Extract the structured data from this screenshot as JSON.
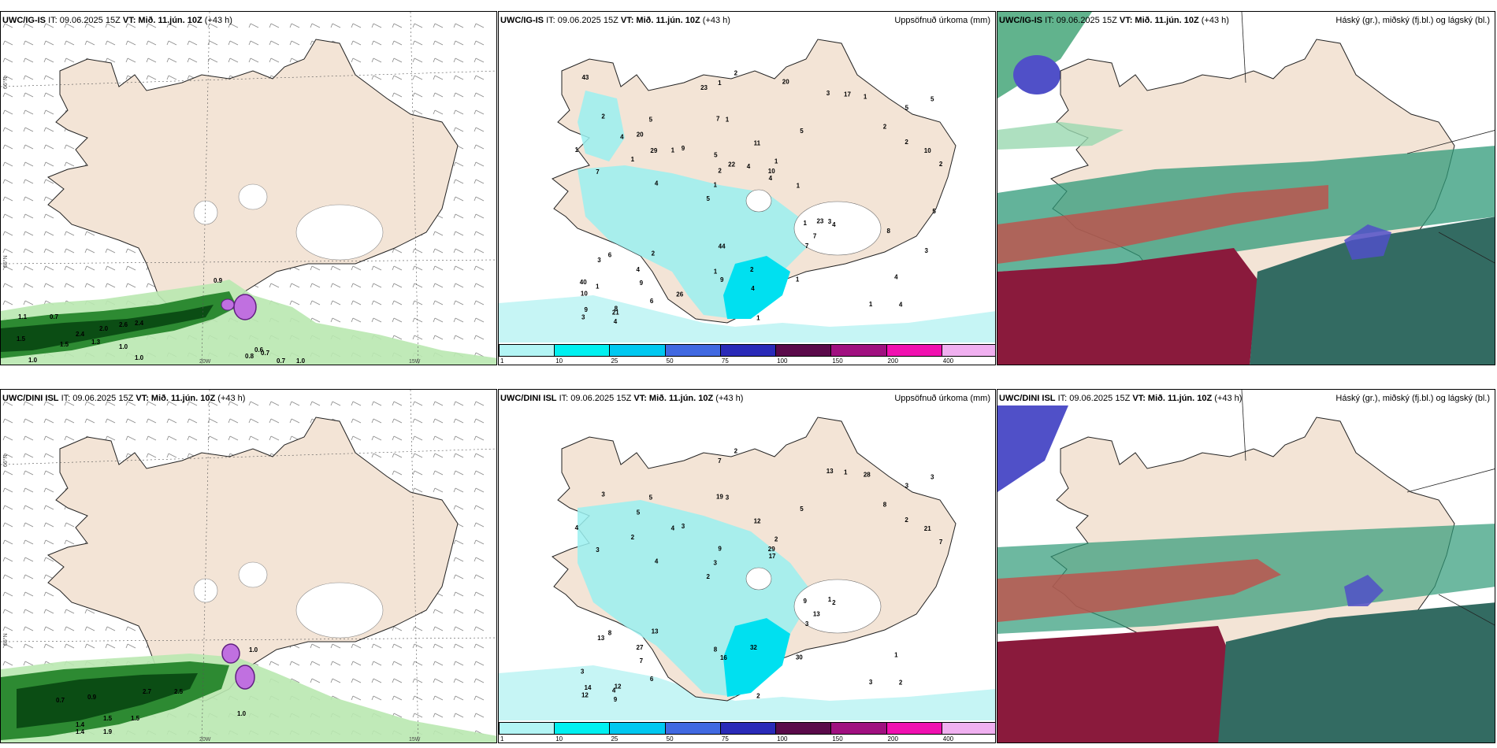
{
  "panels": [
    {
      "model": "UWC/IG-IS",
      "it": "IT: 09.06.2025 15Z",
      "vt": "VT: Mið. 11.jún. 10Z",
      "lead": "(+43 h)",
      "right": ""
    },
    {
      "model": "UWC/IG-IS",
      "it": "IT: 09.06.2025 15Z",
      "vt": "VT: Mið. 11.jún. 10Z",
      "lead": "(+43 h)",
      "right": "Uppsöfnuð úrkoma (mm)"
    },
    {
      "model": "UWC/IG-IS",
      "it": "IT: 09.06.2025 15Z",
      "vt": "VT: Mið. 11.jún. 10Z",
      "lead": "(+43 h)",
      "right": "Háský (gr.), miðský (fj.bl.) og lágský (bl.)"
    },
    {
      "model": "UWC/DINI ISL",
      "it": "IT: 09.06.2025 15Z",
      "vt": "VT: Mið. 11.jún. 10Z",
      "lead": "(+43 h)",
      "right": ""
    },
    {
      "model": "UWC/DINI ISL",
      "it": "IT: 09.06.2025 15Z",
      "vt": "VT: Mið. 11.jún. 10Z",
      "lead": "(+43 h)",
      "right": "Uppsöfnuð úrkoma (mm)"
    },
    {
      "model": "UWC/DINI ISL",
      "it": "IT: 09.06.2025 15Z",
      "vt": "VT: Mið. 11.jún. 10Z",
      "lead": "(+43 h)",
      "right": "Háský (gr.), miðský (fj.bl.) og lágský (bl.)"
    }
  ],
  "colorbar": {
    "ticks": [
      "1",
      "10",
      "25",
      "50",
      "75",
      "100",
      "150",
      "200",
      "400"
    ],
    "colors": [
      "#b3f5f5",
      "#00f0f0",
      "#00c8f0",
      "#4169e1",
      "#2a2ab8",
      "#5a0a4a",
      "#a01080",
      "#f010b0",
      "#f0b0f0"
    ]
  },
  "axis_labels": {
    "lat66": "66°N",
    "lat65": "65°N",
    "lat64": "64°N",
    "lon20": "20W",
    "lon15": "15W"
  },
  "wind_labels_top": [
    "0.9",
    "1.1",
    "0.7",
    "2.4",
    "2.0",
    "2.6",
    "2.4",
    "1.5",
    "1.5",
    "1.3",
    "1.0",
    "1.0",
    "1.0",
    "0.8",
    "0.6",
    "0.7",
    "0.7",
    "1.0"
  ],
  "wind_labels_bottom": [
    "0.7",
    "0.9",
    "2.7",
    "2.5",
    "1.0",
    "1.4",
    "1.5",
    "1.5",
    "1.4",
    "1.9",
    "1.0"
  ],
  "precip_top": [
    "4",
    "7",
    "5",
    "5",
    "5",
    "8",
    "7",
    "11",
    "6",
    "9",
    "10",
    "9",
    "1",
    "1",
    "4",
    "2",
    "1",
    "2",
    "1",
    "2",
    "1",
    "1",
    "2",
    "5",
    "3",
    "2",
    "1",
    "4",
    "3",
    "1",
    "1",
    "1",
    "7",
    "6",
    "10",
    "10",
    "9",
    "9",
    "4",
    "3",
    "2",
    "5",
    "7",
    "1",
    "4",
    "4",
    "3",
    "2",
    "1",
    "2",
    "4",
    "1",
    "20",
    "17",
    "21",
    "20",
    "23",
    "22",
    "3",
    "44",
    "26",
    "23",
    "29",
    "40",
    "43",
    "4",
    "5",
    "5",
    "4",
    "4",
    "1",
    "1",
    "8"
  ],
  "precip_bottom": [
    "2",
    "3",
    "3",
    "2",
    "5",
    "12",
    "19",
    "12",
    "8",
    "3",
    "3",
    "7",
    "3",
    "2",
    "2",
    "3",
    "7",
    "7",
    "9",
    "2",
    "3",
    "8",
    "9",
    "5",
    "13",
    "13",
    "3",
    "1",
    "1",
    "2",
    "4",
    "2",
    "3",
    "6",
    "21",
    "29",
    "14",
    "16",
    "17",
    "13",
    "8",
    "3",
    "13",
    "30",
    "27",
    "9",
    "12",
    "32",
    "28",
    "2",
    "4",
    "4",
    "5",
    "1",
    "4"
  ]
}
